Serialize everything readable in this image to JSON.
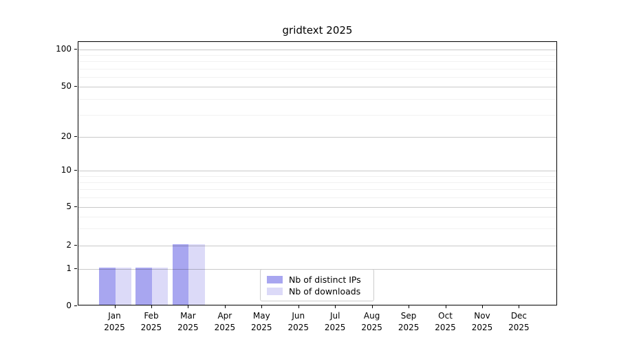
{
  "chart_data": {
    "type": "bar",
    "title": "gridtext 2025",
    "categories": [
      "Jan 2025",
      "Feb 2025",
      "Mar 2025",
      "Apr 2025",
      "May 2025",
      "Jun 2025",
      "Jul 2025",
      "Aug 2025",
      "Sep 2025",
      "Oct 2025",
      "Nov 2025",
      "Dec 2025"
    ],
    "x_tick_top_lines": [
      "Jan",
      "Feb",
      "Mar",
      "Apr",
      "May",
      "Jun",
      "Jul",
      "Aug",
      "Sep",
      "Oct",
      "Nov",
      "Dec"
    ],
    "x_tick_bottom_line": "2025",
    "series": [
      {
        "name": "Nb of distinct IPs",
        "color": "#a8a6f0",
        "values": [
          1,
          1,
          2,
          0,
          0,
          0,
          0,
          0,
          0,
          0,
          0,
          0
        ]
      },
      {
        "name": "Nb of downloads",
        "color": "#dcdaf8",
        "values": [
          1,
          1,
          2,
          0,
          0,
          0,
          0,
          0,
          0,
          0,
          0,
          0
        ]
      }
    ],
    "y_ticks": [
      0,
      1,
      2,
      5,
      10,
      20,
      50,
      100
    ],
    "y_minor_ticks": [
      3,
      4,
      6,
      7,
      8,
      9,
      30,
      40,
      60,
      70,
      80,
      90
    ],
    "ylim": [
      0,
      115
    ],
    "yscale": "log-like (linear segment between 0 and 1)",
    "grid": true,
    "legend_position": "lower center",
    "colors": {
      "axis": "#000000",
      "major_grid": "#cccccc",
      "minor_grid": "#f0f0f0",
      "text": "#000000",
      "background": "#ffffff"
    }
  }
}
